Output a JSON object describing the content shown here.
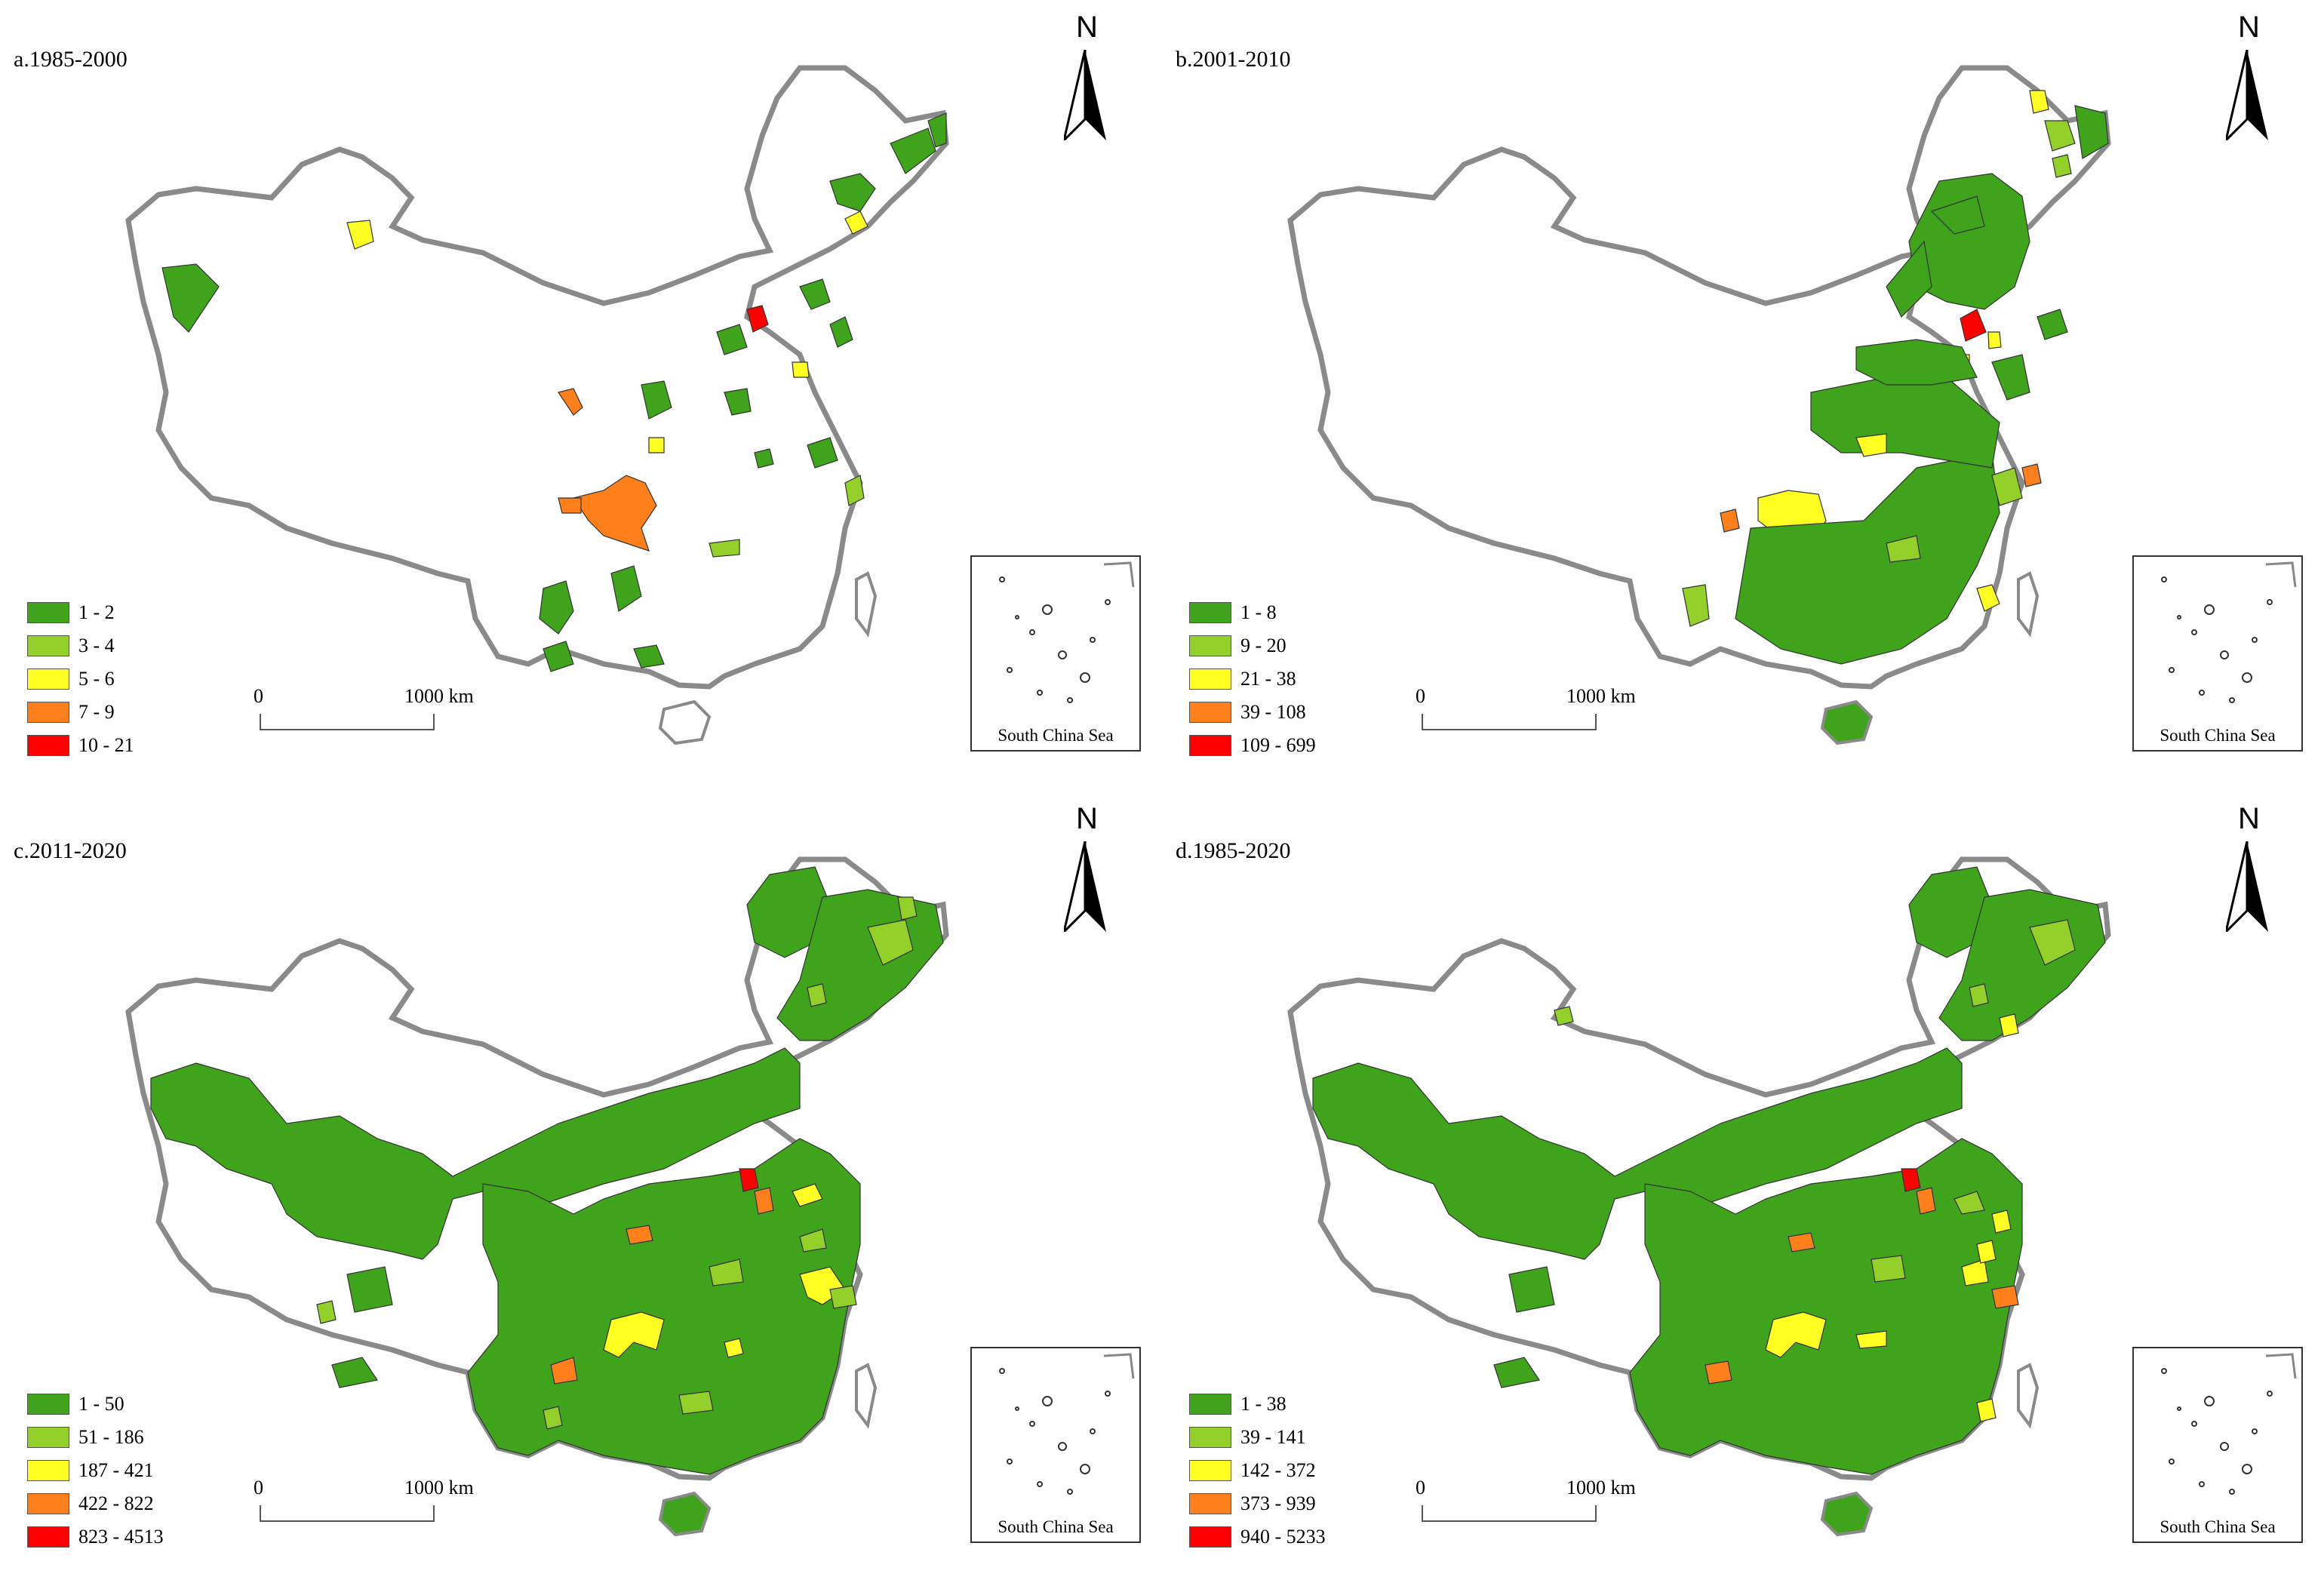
{
  "colors": {
    "class1": "#3fa31c",
    "class2": "#93d02a",
    "class3": "#ffff22",
    "class4": "#ff7f1a",
    "class5": "#ff0000",
    "outline": "#8a8a8a"
  },
  "common": {
    "scale_zero": "0",
    "scale_label": "1000 km",
    "north_label": "N",
    "inset_label": "South China Sea"
  },
  "panels": [
    {
      "title": "a.1985-2000",
      "legend": [
        "1 - 2",
        "3 - 4",
        "5 - 6",
        "7 - 9",
        "10 - 21"
      ]
    },
    {
      "title": "b.2001-2010",
      "legend": [
        "1 - 8",
        "9 - 20",
        "21 - 38",
        "39 - 108",
        "109 - 699"
      ]
    },
    {
      "title": "c.2011-2020",
      "legend": [
        "1 - 50",
        "51 - 186",
        "187 - 421",
        "422 - 822",
        "823 - 4513"
      ]
    },
    {
      "title": "d.1985-2020",
      "legend": [
        "1 - 38",
        "39 - 141",
        "142 - 372",
        "373 - 939",
        "940 - 5233"
      ]
    }
  ]
}
